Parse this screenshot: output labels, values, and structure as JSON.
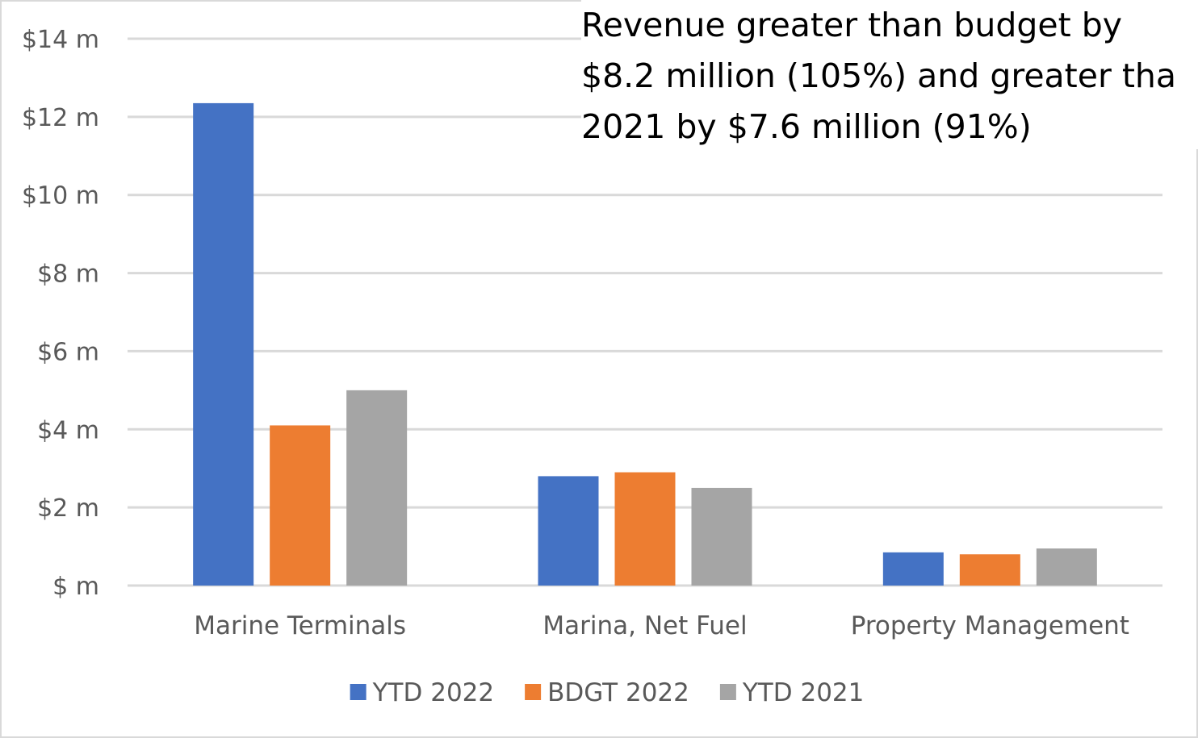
{
  "chart_data": {
    "type": "bar",
    "title": "",
    "xlabel": "",
    "ylabel": "",
    "ylim": [
      0,
      14
    ],
    "yticks": [
      {
        "value": 0,
        "label": "$ m"
      },
      {
        "value": 2,
        "label": "$2 m"
      },
      {
        "value": 4,
        "label": "$4 m"
      },
      {
        "value": 6,
        "label": "$6 m"
      },
      {
        "value": 8,
        "label": "$8 m"
      },
      {
        "value": 10,
        "label": "$10 m"
      },
      {
        "value": 12,
        "label": "$12 m"
      },
      {
        "value": 14,
        "label": "$14 m"
      }
    ],
    "categories": [
      "Marine Terminals",
      "Marina, Net Fuel",
      "Property Management"
    ],
    "series": [
      {
        "name": "YTD 2022",
        "color": "#4472C4",
        "values": [
          12.35,
          2.8,
          0.85
        ]
      },
      {
        "name": "BDGT 2022",
        "color": "#ED7D31",
        "values": [
          4.1,
          2.9,
          0.8
        ]
      },
      {
        "name": "YTD 2021",
        "color": "#A5A5A5",
        "values": [
          5.0,
          2.5,
          0.95
        ]
      }
    ],
    "grid": true,
    "legend_position": "bottom"
  },
  "annotation": {
    "lines": [
      "Revenue greater than budget by",
      "$8.2 million (105%) and greater tha",
      "2021 by $7.6 million (91%)"
    ]
  }
}
